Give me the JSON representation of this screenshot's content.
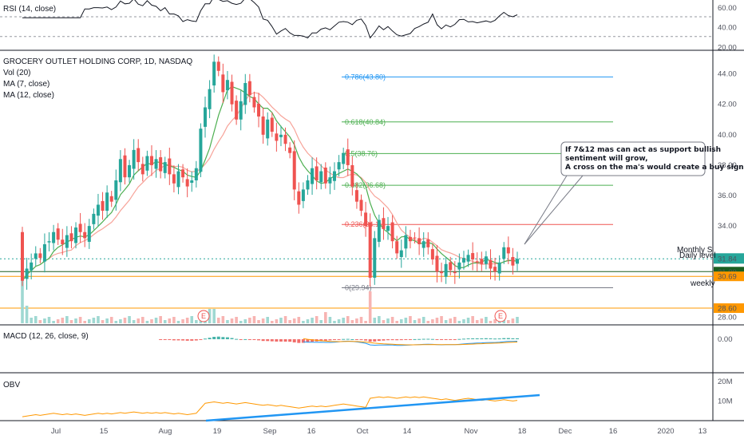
{
  "panels": {
    "rsi": {
      "title": "RSI (14, close)",
      "levels": [
        60,
        40,
        20
      ]
    },
    "price": {
      "title": "GROCERY OUTLET HOLDING CORP, 1D, NASDAQ",
      "indicators": [
        "Vol (20)",
        "MA (7, close)",
        "MA (12, close)"
      ],
      "y_ticks": [
        "44.00",
        "42.00",
        "40.00",
        "38.00",
        "36.00",
        "34.00",
        "28.00"
      ],
      "current_price": "31.84",
      "price_badges": [
        {
          "text": "31.00",
          "value": 31.0,
          "color": "#1b5e20"
        },
        {
          "text": "30.69",
          "value": 30.69,
          "color": "#ff9800"
        },
        {
          "text": "28.60",
          "value": 28.6,
          "color": "#ff9800"
        }
      ],
      "level_labels": {
        "monthly": "Monthly S",
        "daily": "Daily level",
        "weekly": "weekly"
      }
    },
    "macd": {
      "title": "MACD (12, 26, close, 9)",
      "y_tick": "0.00"
    },
    "obv": {
      "title": "OBV",
      "y_ticks": [
        "20M",
        "10M"
      ]
    }
  },
  "x_axis": {
    "labels": [
      "Jul",
      "15",
      "Aug",
      "19",
      "Sep",
      "16",
      "Oct",
      "14",
      "Nov",
      "18",
      "Dec",
      "16",
      "2020",
      "13"
    ]
  },
  "annotation": {
    "lines": [
      "If 7&12 mas can act as support bullish",
      "sentiment will grow,",
      "A cross on the ma's would create a buy signal."
    ]
  },
  "earnings_marker": "E",
  "colors": {
    "up": "#26a69a",
    "down": "#ef5350",
    "ma7": "#4caf50",
    "ma12": "#f7a399",
    "macd": "#2196f3",
    "signal": "#ff9800",
    "obv": "#ff9800",
    "trend": "#2196f3"
  },
  "chart_data": {
    "type": "candlestick",
    "title": "GROCERY OUTLET HOLDING CORP, 1D, NASDAQ",
    "ylim": [
      27.5,
      45.5
    ],
    "fib_levels": [
      {
        "label": "0.786(43.80)",
        "value": 43.8,
        "color": "#2196f3"
      },
      {
        "label": "0.618(40.84)",
        "value": 40.84,
        "color": "#4caf50"
      },
      {
        "label": "0.5(38.76)",
        "value": 38.76,
        "color": "#4caf50"
      },
      {
        "label": "0.382(36.68)",
        "value": 36.68,
        "color": "#4caf50"
      },
      {
        "label": "0.236(34.1)",
        "value": 34.1,
        "color": "#ef5350"
      },
      {
        "label": "0(29.94)",
        "value": 29.94,
        "color": "#787b86"
      }
    ],
    "horizontal_levels": [
      {
        "name": "Monthly S",
        "value": 31.0,
        "color": "#1b5e20"
      },
      {
        "name": "Daily level",
        "value": 30.69,
        "color": "#ff9800"
      },
      {
        "name": "weekly",
        "value": 28.6,
        "color": "#ff9800"
      }
    ],
    "closes": [
      30.4,
      31.2,
      31.6,
      32.2,
      31.9,
      32.8,
      33.0,
      33.6,
      33.1,
      32.8,
      33.4,
      33.0,
      33.9,
      33.6,
      33.2,
      34.0,
      34.8,
      35.4,
      35.0,
      36.2,
      35.6,
      37.0,
      38.4,
      37.2,
      38.0,
      39.0,
      38.2,
      37.4,
      38.6,
      38.0,
      38.4,
      37.6,
      38.2,
      37.4,
      36.8,
      37.6,
      37.2,
      36.6,
      37.0,
      37.8,
      40.4,
      41.8,
      43.0,
      44.8,
      44.2,
      42.8,
      43.6,
      42.0,
      41.0,
      42.2,
      43.4,
      42.6,
      41.8,
      41.2,
      40.0,
      41.0,
      40.2,
      39.6,
      40.0,
      39.4,
      38.8,
      36.4,
      35.4,
      36.4,
      37.0,
      37.8,
      37.0,
      37.6,
      36.8,
      37.2,
      37.6,
      38.2,
      38.8,
      38.0,
      36.6,
      35.6,
      35.0,
      34.0,
      30.6,
      33.2,
      34.4,
      33.8,
      34.0,
      33.0,
      32.2,
      32.4,
      33.4,
      33.0,
      33.2,
      32.8,
      33.0,
      32.6,
      31.8,
      31.0,
      30.9,
      31.5,
      31.1,
      30.9,
      31.6,
      31.9,
      32.1,
      31.8,
      31.6,
      31.5,
      32.0,
      31.2,
      31.0,
      31.6,
      32.6,
      32.2,
      31.4,
      31.84
    ],
    "rsi_last": 48,
    "volume_spike_at": "Oct",
    "axis_labels_x": [
      "Jul",
      "15",
      "Aug",
      "19",
      "Sep",
      "16",
      "Oct",
      "14",
      "Nov",
      "18",
      "Dec",
      "16",
      "2020",
      "13"
    ]
  }
}
